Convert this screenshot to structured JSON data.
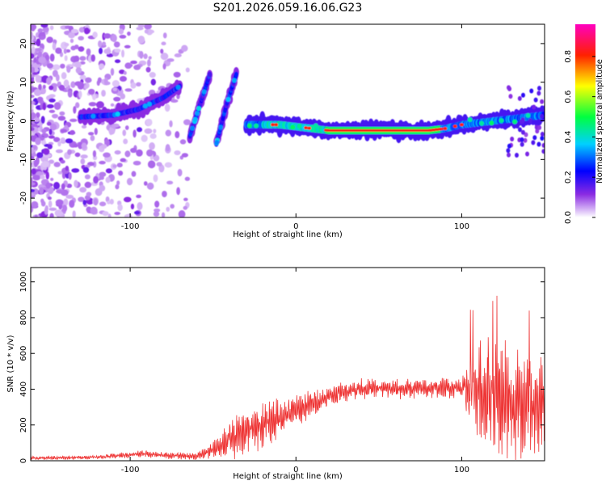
{
  "title": "S201.2026.059.16.06.G23",
  "colors": {
    "snr_line": "#ee3333",
    "axis": "#000000",
    "background": "#ffffff"
  },
  "chart_data": [
    {
      "type": "heatmap",
      "name": "spectrogram",
      "xlabel": "Height of straight line (km)",
      "ylabel": "Frequency (Hz)",
      "xlim": [
        -160,
        150
      ],
      "ylim": [
        -25,
        25
      ],
      "xticks": [
        -100,
        0,
        100
      ],
      "yticks": [
        -20,
        -10,
        0,
        10,
        20
      ],
      "colorbar": {
        "label": "Normalized spectral amplitude",
        "range": [
          0,
          0.96
        ],
        "ticks": [
          0.0,
          0.2,
          0.4,
          0.6,
          0.8
        ],
        "colormap": "rainbow (violet-blue-cyan-green-yellow-red-magenta)"
      },
      "features": [
        {
          "name": "main-track",
          "description": "dominant low-frequency line",
          "x": [
            -30,
            -20,
            -10,
            0,
            10,
            20,
            40,
            60,
            80,
            90,
            100,
            120,
            140,
            150
          ],
          "y": [
            -1,
            -1,
            -1,
            -1.5,
            -2,
            -2.5,
            -2.5,
            -2.5,
            -2.5,
            -2,
            -1,
            0,
            1,
            1.5
          ],
          "peak_amplitude": 0.95
        },
        {
          "name": "diagonal-band-1",
          "x": [
            -130,
            -110,
            -95,
            -80,
            -70
          ],
          "y": [
            1,
            1.5,
            3,
            6,
            9
          ],
          "peak_amplitude": 0.45
        },
        {
          "name": "diagonal-band-2",
          "x": [
            -64,
            -58,
            -52
          ],
          "y": [
            -4,
            4,
            12
          ],
          "peak_amplitude": 0.35
        },
        {
          "name": "diagonal-band-3",
          "x": [
            -48,
            -42,
            -36
          ],
          "y": [
            -6,
            4,
            12
          ],
          "peak_amplitude": 0.35
        }
      ]
    },
    {
      "type": "line",
      "name": "snr",
      "xlabel": "Height of straight line (km)",
      "ylabel": "SNR (10 * v/v)",
      "xlim": [
        -160,
        150
      ],
      "ylim": [
        0,
        1080
      ],
      "xticks": [
        -100,
        0,
        100
      ],
      "yticks": [
        0,
        200,
        400,
        600,
        800,
        1000
      ],
      "envelope": {
        "x": [
          -160,
          -120,
          -90,
          -80,
          -60,
          -50,
          -40,
          -30,
          -20,
          -10,
          0,
          10,
          20,
          30,
          40,
          60,
          80,
          100,
          105,
          110,
          120,
          130,
          140,
          150
        ],
        "mean": [
          15,
          20,
          40,
          30,
          25,
          60,
          120,
          160,
          200,
          240,
          280,
          320,
          360,
          390,
          405,
          400,
          405,
          410,
          400,
          350,
          370,
          330,
          300,
          300
        ],
        "amplitude": [
          10,
          12,
          25,
          20,
          20,
          50,
          120,
          140,
          140,
          120,
          100,
          80,
          60,
          60,
          60,
          60,
          60,
          60,
          250,
          300,
          330,
          360,
          320,
          320
        ]
      }
    }
  ]
}
